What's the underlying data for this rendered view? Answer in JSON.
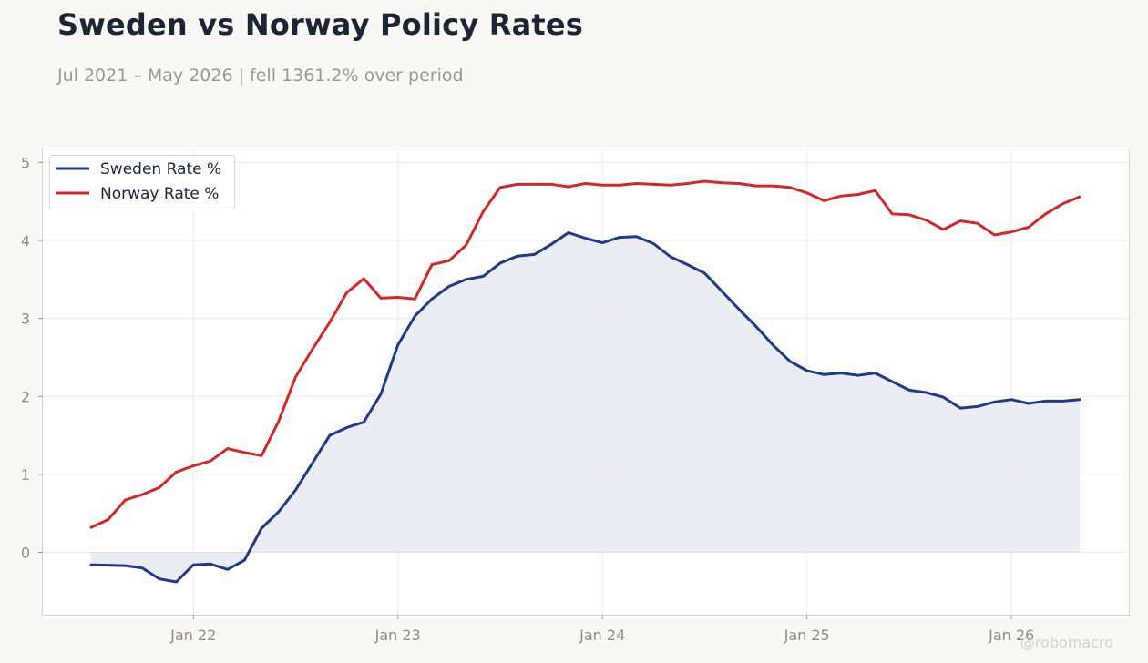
{
  "title": "Sweden vs Norway Policy Rates",
  "subtitle": "Jul 2021 – May 2026 | fell 1361.2% over period",
  "watermark": "@robomacro",
  "colors": {
    "background": "#f9f8f5",
    "plot_background": "#ffffff",
    "title": "#1b2536",
    "subtitle": "#9b9893",
    "sweden": "#1f3a8a",
    "norway": "#d62728",
    "area_fill": "#e6e8f1"
  },
  "chart_data": {
    "type": "line",
    "title": "Sweden vs Norway Policy Rates",
    "subtitle": "Jul 2021 – May 2026 | fell 1361.2% over period",
    "xlabel": "",
    "ylabel": "",
    "x": [
      "2021-07",
      "2021-08",
      "2021-09",
      "2021-10",
      "2021-11",
      "2021-12",
      "2022-01",
      "2022-02",
      "2022-03",
      "2022-04",
      "2022-05",
      "2022-06",
      "2022-07",
      "2022-08",
      "2022-09",
      "2022-10",
      "2022-11",
      "2022-12",
      "2023-01",
      "2023-02",
      "2023-03",
      "2023-04",
      "2023-05",
      "2023-06",
      "2023-07",
      "2023-08",
      "2023-09",
      "2023-10",
      "2023-11",
      "2023-12",
      "2024-01",
      "2024-02",
      "2024-03",
      "2024-04",
      "2024-05",
      "2024-06",
      "2024-07",
      "2024-08",
      "2024-09",
      "2024-10",
      "2024-11",
      "2024-12",
      "2025-01",
      "2025-02",
      "2025-03",
      "2025-04",
      "2025-05",
      "2025-06",
      "2025-07",
      "2025-08",
      "2025-09",
      "2025-10",
      "2025-11",
      "2025-12",
      "2026-01",
      "2026-02",
      "2026-03",
      "2026-04",
      "2026-05"
    ],
    "x_ticks": [
      {
        "value": "2022-01",
        "label": "Jan 22"
      },
      {
        "value": "2023-01",
        "label": "Jan 23"
      },
      {
        "value": "2024-01",
        "label": "Jan 24"
      },
      {
        "value": "2025-01",
        "label": "Jan 25"
      },
      {
        "value": "2026-01",
        "label": "Jan 26"
      }
    ],
    "y_ticks": [
      0,
      1,
      2,
      3,
      4,
      5
    ],
    "ylim": [
      -0.8,
      5.18
    ],
    "grid": true,
    "legend_position": "top-left",
    "area_fill_series": "Sweden Rate %",
    "series": [
      {
        "name": "Sweden Rate %",
        "color": "#1f3a8a",
        "values": [
          -0.16,
          -0.165,
          -0.17,
          -0.2,
          -0.34,
          -0.38,
          -0.16,
          -0.15,
          -0.22,
          -0.1,
          0.31,
          0.52,
          0.8,
          1.15,
          1.5,
          1.6,
          1.67,
          2.03,
          2.66,
          3.03,
          3.25,
          3.41,
          3.5,
          3.54,
          3.71,
          3.8,
          3.82,
          3.95,
          4.1,
          4.03,
          3.97,
          4.04,
          4.05,
          3.96,
          3.79,
          3.69,
          3.58,
          3.35,
          3.12,
          2.9,
          2.66,
          2.45,
          2.33,
          2.28,
          2.3,
          2.27,
          2.3,
          2.19,
          2.08,
          2.05,
          1.99,
          1.85,
          1.87,
          1.93,
          1.96,
          1.91,
          1.94,
          1.94,
          1.96
        ]
      },
      {
        "name": "Norway Rate %",
        "color": "#d62728",
        "values": [
          0.32,
          0.42,
          0.67,
          0.74,
          0.83,
          1.03,
          1.11,
          1.17,
          1.33,
          1.28,
          1.24,
          1.68,
          2.25,
          2.61,
          2.95,
          3.33,
          3.51,
          3.26,
          3.27,
          3.25,
          3.69,
          3.74,
          3.94,
          4.37,
          4.68,
          4.72,
          4.72,
          4.72,
          4.69,
          4.73,
          4.71,
          4.71,
          4.73,
          4.72,
          4.71,
          4.73,
          4.76,
          4.74,
          4.73,
          4.7,
          4.7,
          4.68,
          4.61,
          4.51,
          4.57,
          4.59,
          4.64,
          4.34,
          4.33,
          4.26,
          4.14,
          4.25,
          4.22,
          4.07,
          4.11,
          4.17,
          4.34,
          4.47,
          4.56
        ]
      }
    ]
  }
}
